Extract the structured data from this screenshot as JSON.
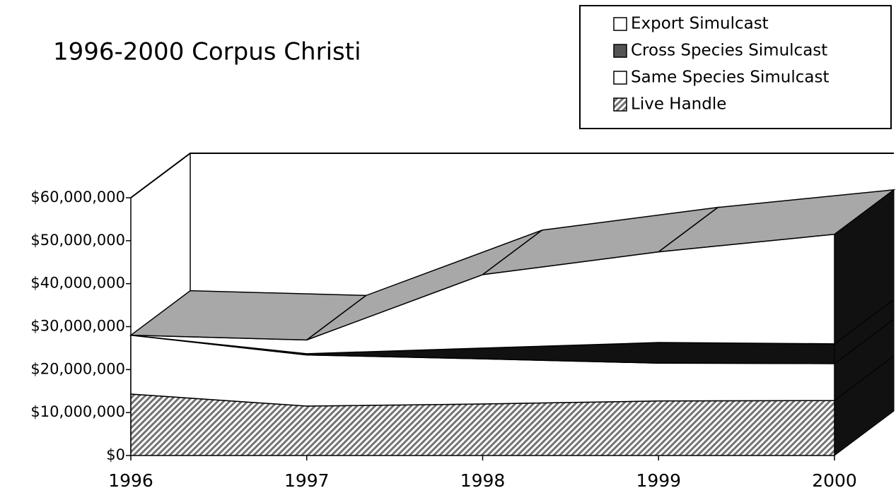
{
  "chart_data": {
    "type": "area3d",
    "title": "1996-2000 Corpus Christi",
    "categories": [
      "1996",
      "1997",
      "1998",
      "1999",
      "2000"
    ],
    "series": [
      {
        "name": "Live Handle",
        "color": "#9a9a9a",
        "values": [
          14300000,
          11500000,
          12000000,
          12700000,
          12800000
        ]
      },
      {
        "name": "Same Species Simulcast",
        "color": "#ffffff",
        "values": [
          13700000,
          11900000,
          10500000,
          8800000,
          8600000
        ]
      },
      {
        "name": "Cross Species Simulcast",
        "color": "#111111",
        "values": [
          0,
          300000,
          2500000,
          4800000,
          4600000
        ]
      },
      {
        "name": "Export Simulcast",
        "color": "#ffffff",
        "values": [
          0,
          3200000,
          17100000,
          21100000,
          25500000
        ]
      }
    ],
    "ylim": [
      0,
      60000000
    ],
    "yticks": [
      {
        "value": 0,
        "label": "$0"
      },
      {
        "value": 10000000,
        "label": "$10,000,000"
      },
      {
        "value": 20000000,
        "label": "$20,000,000"
      },
      {
        "value": 30000000,
        "label": "$30,000,000"
      },
      {
        "value": 40000000,
        "label": "$40,000,000"
      },
      {
        "value": 50000000,
        "label": "$50,000,000"
      },
      {
        "value": 60000000,
        "label": "$60,000,000"
      }
    ],
    "legend": "top-right"
  }
}
